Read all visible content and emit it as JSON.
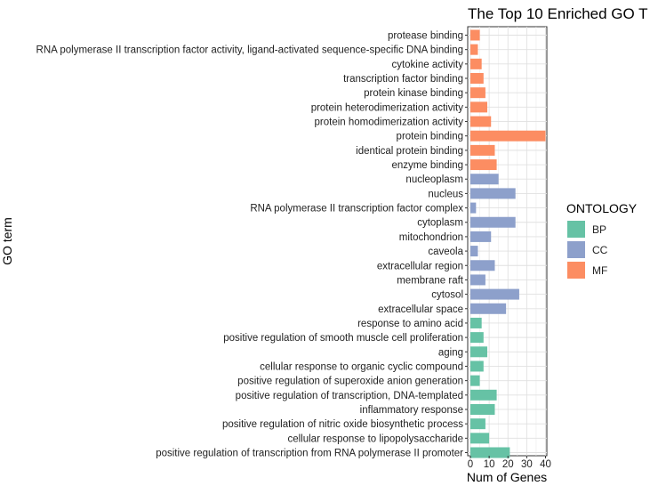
{
  "chart_data": {
    "type": "bar",
    "orientation": "horizontal",
    "title": "The Top 10 Enriched GO T",
    "xlabel": "Num of Genes",
    "ylabel": "GO term",
    "xlim": [
      0,
      42
    ],
    "xticks": [
      0,
      10,
      20,
      30,
      40
    ],
    "grid": true,
    "legend": {
      "title": "ONTOLOGY",
      "position": "right",
      "entries": [
        {
          "name": "BP",
          "color": "#66c2a5"
        },
        {
          "name": "CC",
          "color": "#8da0cb"
        },
        {
          "name": "MF",
          "color": "#fc8d62"
        }
      ]
    },
    "categories": [
      "protease binding",
      "RNA polymerase II transcription factor activity, ligand-activated sequence-specific DNA binding",
      "cytokine activity",
      "transcription factor binding",
      "protein kinase binding",
      "protein heterodimerization activity",
      "protein homodimerization activity",
      "protein binding",
      "identical protein binding",
      "enzyme binding",
      "nucleoplasm",
      "nucleus",
      "RNA polymerase II transcription factor complex",
      "cytoplasm",
      "mitochondrion",
      "caveola",
      "extracellular region",
      "membrane raft",
      "cytosol",
      "extracellular space",
      "response to amino acid",
      "positive regulation of smooth muscle cell proliferation",
      "aging",
      "cellular response to organic cyclic compound",
      "positive regulation of superoxide anion generation",
      "positive regulation of transcription, DNA-templated",
      "inflammatory response",
      "positive regulation of nitric oxide biosynthetic process",
      "cellular response to lipopolysaccharide",
      "positive regulation of transcription from RNA polymerase II promoter"
    ],
    "values": [
      5,
      4,
      6,
      7,
      8,
      9,
      11,
      40,
      13,
      14,
      15,
      24,
      3,
      24,
      11,
      4,
      13,
      8,
      26,
      19,
      6,
      7,
      9,
      7,
      5,
      14,
      13,
      8,
      10,
      21
    ],
    "ontology": [
      "MF",
      "MF",
      "MF",
      "MF",
      "MF",
      "MF",
      "MF",
      "MF",
      "MF",
      "MF",
      "CC",
      "CC",
      "CC",
      "CC",
      "CC",
      "CC",
      "CC",
      "CC",
      "CC",
      "CC",
      "BP",
      "BP",
      "BP",
      "BP",
      "BP",
      "BP",
      "BP",
      "BP",
      "BP",
      "BP"
    ]
  }
}
